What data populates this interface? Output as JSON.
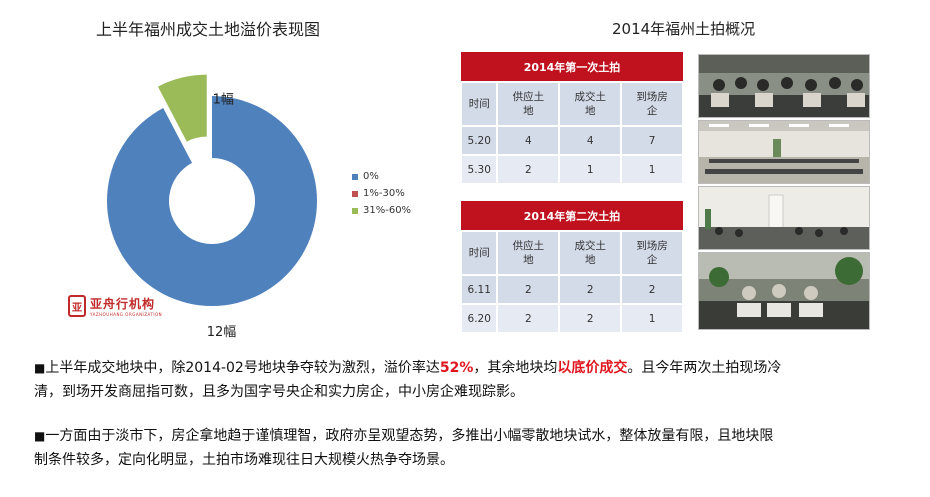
{
  "left_chart": {
    "title": "上半年福州成交土地溢价表现图",
    "legend": [
      {
        "label": "0%",
        "color": "#4f81bd"
      },
      {
        "label": "1%-30%",
        "color": "#c0504d"
      },
      {
        "label": "31%-60%",
        "color": "#9bbb59"
      }
    ],
    "logo_text": "亚舟行机构",
    "logo_sub": "YAZHOUHANG ORGANIZATION"
  },
  "chart_data": {
    "type": "pie",
    "title": "上半年福州成交土地溢价表现图",
    "categories": [
      "0%",
      "1%-30%",
      "31%-60%"
    ],
    "values": [
      12,
      0,
      1
    ],
    "data_labels": [
      "12幅",
      "",
      "1幅"
    ],
    "colors": [
      "#4f81bd",
      "#c0504d",
      "#9bbb59"
    ],
    "donut": true,
    "exploded": "31%-60%",
    "legend_position": "right"
  },
  "right_section": {
    "title": "2014年福州土拍概况",
    "tables": [
      {
        "caption": "2014年第一次土拍",
        "headers": [
          "时间",
          "供应土地",
          "成交土地",
          "到场房企"
        ],
        "rows": [
          [
            "5.20",
            "4",
            "4",
            "7"
          ],
          [
            "5.30",
            "2",
            "1",
            "1"
          ]
        ]
      },
      {
        "caption": "2014年第二次土拍",
        "headers": [
          "时间",
          "供应土地",
          "成交土地",
          "到场房企"
        ],
        "rows": [
          [
            "6.11",
            "2",
            "2",
            "2"
          ],
          [
            "6.20",
            "2",
            "2",
            "1"
          ]
        ]
      }
    ],
    "photos": [
      "meeting-photo-1",
      "meeting-photo-2",
      "meeting-photo-3",
      "meeting-photo-4"
    ]
  },
  "paragraphs": {
    "p1_part1": "上半年成交地块中，除2014-02号地块争夺较为激烈，溢价率达",
    "p1_highlight1": "52%",
    "p1_part2": "，其余地块均",
    "p1_highlight2": "以底价成交",
    "p1_part3": "。且今年两次土拍现场冷",
    "p1_line2": "清，到场开发商屈指可数，且多为国字号央企和实力房企，中小房企难现踪影。",
    "p2_line1": "一方面由于淡市下，房企拿地趋于谨慎理智，政府亦呈观望态势，多推出小幅零散地块试水，整体放量有限，且地块限",
    "p2_line2": "制条件较多，定向化明显，土拍市场难现往日大规模火热争夺场景。",
    "bullet_char": "■"
  }
}
